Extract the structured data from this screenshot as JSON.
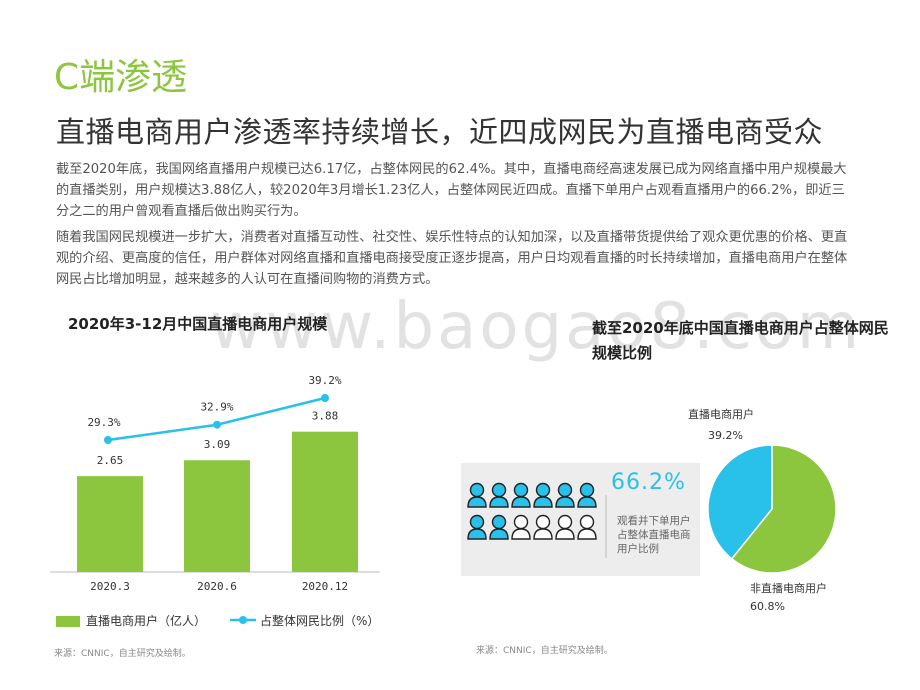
{
  "header": {
    "section_title": "C端渗透",
    "headline": "直播电商用户渗透率持续增长，近四成网民为直播电商受众"
  },
  "body_text": {
    "paragraph1": "截至2020年底，我国网络直播用户规模已达6.17亿，占整体网民的62.4%。其中，直播电商经高速发展已成为网络直播中用户规模最大的直播类别，用户规模达3.88亿人，较2020年3月增长1.23亿人，占整体网民近四成。直播下单用户占观看直播用户的66.2%，即近三分之二的用户曾观看直播后做出购买行为。",
    "paragraph2": "随着我国网民规模进一步扩大，消费者对直播互动性、社交性、娱乐性特点的认知加深，以及直播带货提供给了观众更优惠的价格、更直观的介绍、更高度的信任，用户群体对网络直播和直播电商接受度正逐步提高，用户日均观看直播的时长持续增加，直播电商用户在整体网民占比增加明显，越来越多的人认可在直播间购物的消费方式。"
  },
  "watermark": "www.baogao8.com",
  "colors": {
    "green": "#8cc63f",
    "blue": "#29c0ea",
    "panel": "#ededed"
  },
  "chart_data": [
    {
      "type": "bar",
      "title": "2020年3-12月中国直播电商用户规模",
      "categories": [
        "2020.3",
        "2020.6",
        "2020.12"
      ],
      "series": [
        {
          "name": "直播电商用户（亿人）",
          "type": "bar",
          "values": [
            2.65,
            3.09,
            3.88
          ]
        },
        {
          "name": "占整体网民比例（%）",
          "type": "line",
          "values": [
            29.3,
            32.9,
            39.2
          ]
        }
      ],
      "value_labels_bar": [
        "2.65",
        "3.09",
        "3.88"
      ],
      "value_labels_line": [
        "29.3%",
        "32.9%",
        "39.2%"
      ],
      "legend_position": "bottom"
    },
    {
      "type": "pie",
      "title": "截至2020年底中国直播电商用户占整体网民规模比例",
      "slices": [
        {
          "name": "直播电商用户",
          "value": 39.2,
          "label": "39.2%"
        },
        {
          "name": "非直播电商用户",
          "value": 60.8,
          "label": "60.8%"
        }
      ]
    }
  ],
  "people_stat": {
    "value": "66.2%",
    "description": "观看并下单用户占整体直播电商用户比例",
    "filled_count": 8,
    "total_count": 12
  },
  "sources": {
    "left": "来源：CNNIC，自主研究及绘制。",
    "right": "来源：CNNIC，自主研究及绘制。"
  }
}
